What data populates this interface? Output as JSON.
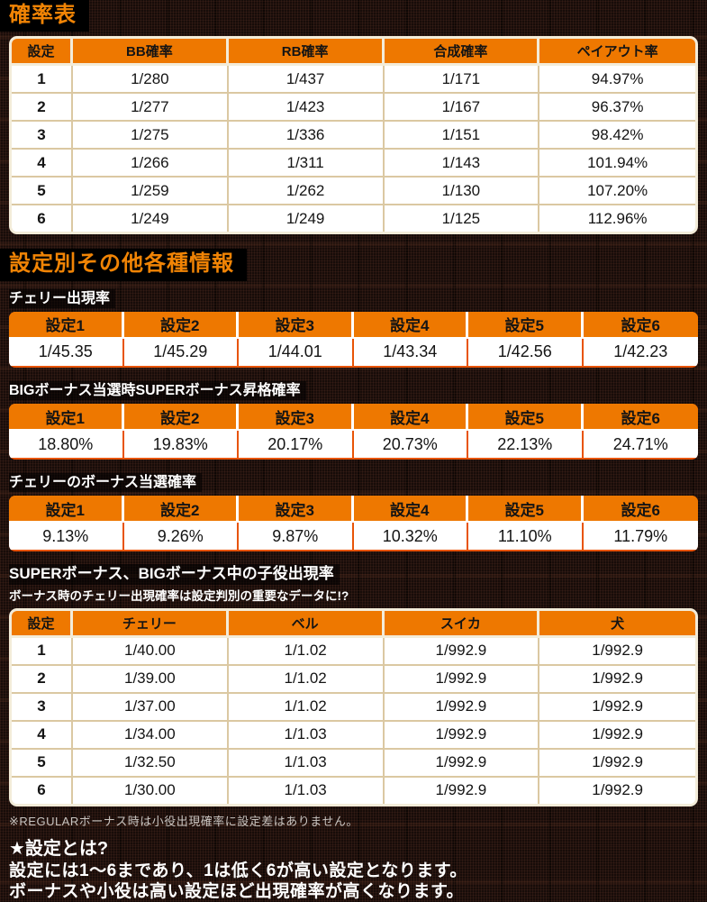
{
  "page": {
    "section1_title": "確率表",
    "section2_title": "設定別その他各種情報",
    "footnote": "※REGULARボーナス時は小役出現確率に設定差はありません。",
    "explain_title": "★設定とは?",
    "explain_line1": "設定には1〜6まであり、1は低く6が高い設定となります。",
    "explain_line2": "ボーナスや小役は高い設定ほど出現確率が高くなります。"
  },
  "colors": {
    "accent_orange": "#ee7800",
    "title_orange": "#f18405",
    "divider_orange": "#e85407",
    "divider_beige": "#dbc8a2",
    "frame_cream": "#f3ecd9",
    "background_dark": "#170c09"
  },
  "prob_table": {
    "headers": [
      "設定",
      "BB確率",
      "RB確率",
      "合成確率",
      "ペイアウト率"
    ],
    "rows": [
      [
        "1",
        "1/280",
        "1/437",
        "1/171",
        "94.97%"
      ],
      [
        "2",
        "1/277",
        "1/423",
        "1/167",
        "96.37%"
      ],
      [
        "3",
        "1/275",
        "1/336",
        "1/151",
        "98.42%"
      ],
      [
        "4",
        "1/266",
        "1/311",
        "1/143",
        "101.94%"
      ],
      [
        "5",
        "1/259",
        "1/262",
        "1/130",
        "107.20%"
      ],
      [
        "6",
        "1/249",
        "1/249",
        "1/125",
        "112.96%"
      ]
    ]
  },
  "cherry_rate": {
    "label": "チェリー出現率",
    "headers": [
      "設定1",
      "設定2",
      "設定3",
      "設定4",
      "設定5",
      "設定6"
    ],
    "values": [
      "1/45.35",
      "1/45.29",
      "1/44.01",
      "1/43.34",
      "1/42.56",
      "1/42.23"
    ]
  },
  "super_upgrade": {
    "label": "BIGボーナス当選時SUPERボーナス昇格確率",
    "headers": [
      "設定1",
      "設定2",
      "設定3",
      "設定4",
      "設定5",
      "設定6"
    ],
    "values": [
      "18.80%",
      "19.83%",
      "20.17%",
      "20.73%",
      "22.13%",
      "24.71%"
    ]
  },
  "cherry_bonus": {
    "label": "チェリーのボーナス当選確率",
    "headers": [
      "設定1",
      "設定2",
      "設定3",
      "設定4",
      "設定5",
      "設定6"
    ],
    "values": [
      "9.13%",
      "9.26%",
      "9.87%",
      "10.32%",
      "11.10%",
      "11.79%"
    ]
  },
  "koyaku_table": {
    "label": "SUPERボーナス、BIGボーナス中の子役出現率",
    "sublabel": "ボーナス時のチェリー出現確率は設定判別の重要なデータに!?",
    "headers": [
      "設定",
      "チェリー",
      "ベル",
      "スイカ",
      "犬"
    ],
    "rows": [
      [
        "1",
        "1/40.00",
        "1/1.02",
        "1/992.9",
        "1/992.9"
      ],
      [
        "2",
        "1/39.00",
        "1/1.02",
        "1/992.9",
        "1/992.9"
      ],
      [
        "3",
        "1/37.00",
        "1/1.02",
        "1/992.9",
        "1/992.9"
      ],
      [
        "4",
        "1/34.00",
        "1/1.03",
        "1/992.9",
        "1/992.9"
      ],
      [
        "5",
        "1/32.50",
        "1/1.03",
        "1/992.9",
        "1/992.9"
      ],
      [
        "6",
        "1/30.00",
        "1/1.03",
        "1/992.9",
        "1/992.9"
      ]
    ]
  }
}
